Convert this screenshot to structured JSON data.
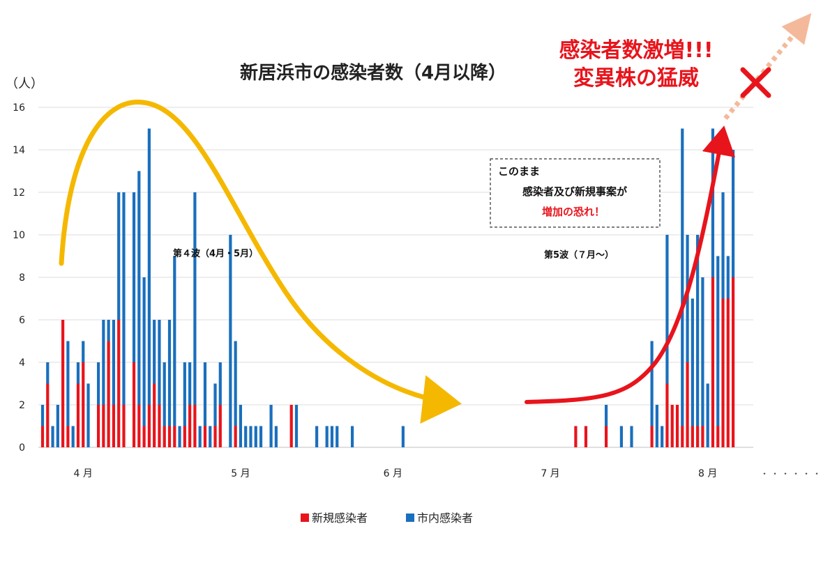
{
  "chart_data": {
    "type": "bar",
    "stacked": true,
    "title": "新居浜市の感染者数（4月以降）",
    "ylabel": "（人）",
    "ylim": [
      0,
      16
    ],
    "yticks": [
      0,
      2,
      4,
      6,
      8,
      10,
      12,
      14,
      16
    ],
    "grid": "horizontal",
    "x_month_labels": [
      "4 月",
      "5 月",
      "6 月",
      "7 月",
      "8 月"
    ],
    "x_month_day_index": [
      8,
      39,
      69,
      100,
      131
    ],
    "x_day_range": [
      0,
      139
    ],
    "trailing_marker": "・・・・・・",
    "legend": [
      {
        "name": "新規感染者",
        "color": "#e8141c"
      },
      {
        "name": "市内感染者",
        "color": "#1a6fbd"
      }
    ],
    "legend_position": "bottom-center",
    "series": [
      {
        "name": "新規感染者",
        "color": "#e8141c",
        "points": [
          [
            0,
            1
          ],
          [
            1,
            3
          ],
          [
            3,
            0
          ],
          [
            4,
            6
          ],
          [
            5,
            1
          ],
          [
            7,
            3
          ],
          [
            8,
            4
          ],
          [
            11,
            2
          ],
          [
            12,
            2
          ],
          [
            13,
            5
          ],
          [
            14,
            2
          ],
          [
            15,
            6
          ],
          [
            16,
            2
          ],
          [
            18,
            4
          ],
          [
            19,
            2
          ],
          [
            20,
            1
          ],
          [
            21,
            2
          ],
          [
            22,
            3
          ],
          [
            23,
            2
          ],
          [
            24,
            1
          ],
          [
            25,
            1
          ],
          [
            26,
            1
          ],
          [
            28,
            1
          ],
          [
            29,
            2
          ],
          [
            30,
            2
          ],
          [
            32,
            1
          ],
          [
            34,
            1
          ],
          [
            35,
            2
          ],
          [
            38,
            1
          ],
          [
            49,
            2
          ],
          [
            105,
            1
          ],
          [
            107,
            1
          ],
          [
            111,
            1
          ],
          [
            120,
            1
          ],
          [
            123,
            3
          ],
          [
            124,
            2
          ],
          [
            125,
            2
          ],
          [
            126,
            1
          ],
          [
            127,
            4
          ],
          [
            128,
            1
          ],
          [
            129,
            1
          ],
          [
            130,
            1
          ],
          [
            132,
            8
          ],
          [
            133,
            1
          ],
          [
            134,
            7
          ],
          [
            135,
            7
          ],
          [
            136,
            8
          ]
        ]
      },
      {
        "name": "市内感染者",
        "color": "#1a6fbd",
        "points": [
          [
            0,
            1
          ],
          [
            1,
            1
          ],
          [
            2,
            1
          ],
          [
            3,
            2
          ],
          [
            4,
            0
          ],
          [
            5,
            4
          ],
          [
            6,
            1
          ],
          [
            7,
            1
          ],
          [
            8,
            1
          ],
          [
            9,
            3
          ],
          [
            11,
            2
          ],
          [
            12,
            4
          ],
          [
            13,
            1
          ],
          [
            14,
            4
          ],
          [
            15,
            6
          ],
          [
            16,
            10
          ],
          [
            18,
            8
          ],
          [
            19,
            11
          ],
          [
            20,
            7
          ],
          [
            21,
            13
          ],
          [
            22,
            3
          ],
          [
            23,
            4
          ],
          [
            24,
            3
          ],
          [
            25,
            5
          ],
          [
            26,
            8
          ],
          [
            27,
            1
          ],
          [
            28,
            3
          ],
          [
            29,
            2
          ],
          [
            30,
            10
          ],
          [
            31,
            1
          ],
          [
            32,
            3
          ],
          [
            33,
            1
          ],
          [
            34,
            2
          ],
          [
            35,
            2
          ],
          [
            37,
            10
          ],
          [
            38,
            4
          ],
          [
            39,
            2
          ],
          [
            40,
            1
          ],
          [
            41,
            1
          ],
          [
            42,
            1
          ],
          [
            43,
            1
          ],
          [
            45,
            2
          ],
          [
            46,
            1
          ],
          [
            50,
            2
          ],
          [
            54,
            1
          ],
          [
            56,
            1
          ],
          [
            57,
            1
          ],
          [
            58,
            1
          ],
          [
            61,
            1
          ],
          [
            71,
            1
          ],
          [
            111,
            1
          ],
          [
            114,
            1
          ],
          [
            116,
            1
          ],
          [
            120,
            4
          ],
          [
            121,
            2
          ],
          [
            122,
            1
          ],
          [
            123,
            7
          ],
          [
            124,
            0
          ],
          [
            125,
            0
          ],
          [
            126,
            14
          ],
          [
            127,
            6
          ],
          [
            128,
            6
          ],
          [
            129,
            9
          ],
          [
            130,
            7
          ],
          [
            131,
            3
          ],
          [
            132,
            7
          ],
          [
            133,
            8
          ],
          [
            134,
            5
          ],
          [
            135,
            2
          ],
          [
            136,
            6
          ]
        ]
      }
    ]
  },
  "annotations": {
    "wave4_label": "第４波（4月・5月）",
    "wave5_label": "第5波（７月～）",
    "alert_line1": "感染者数激増!!!",
    "alert_line2": "変異株の猛威",
    "box_line1": "このまま",
    "box_line2": "感染者及び新規事案が",
    "box_line3": "増加の恐れ！"
  },
  "colors": {
    "new_cases": "#e8141c",
    "city_cases": "#1a6fbd",
    "yellow_arrow": "#f5b800",
    "red_arrow": "#e8141c",
    "dotted_arrow": "#f4b99a"
  }
}
